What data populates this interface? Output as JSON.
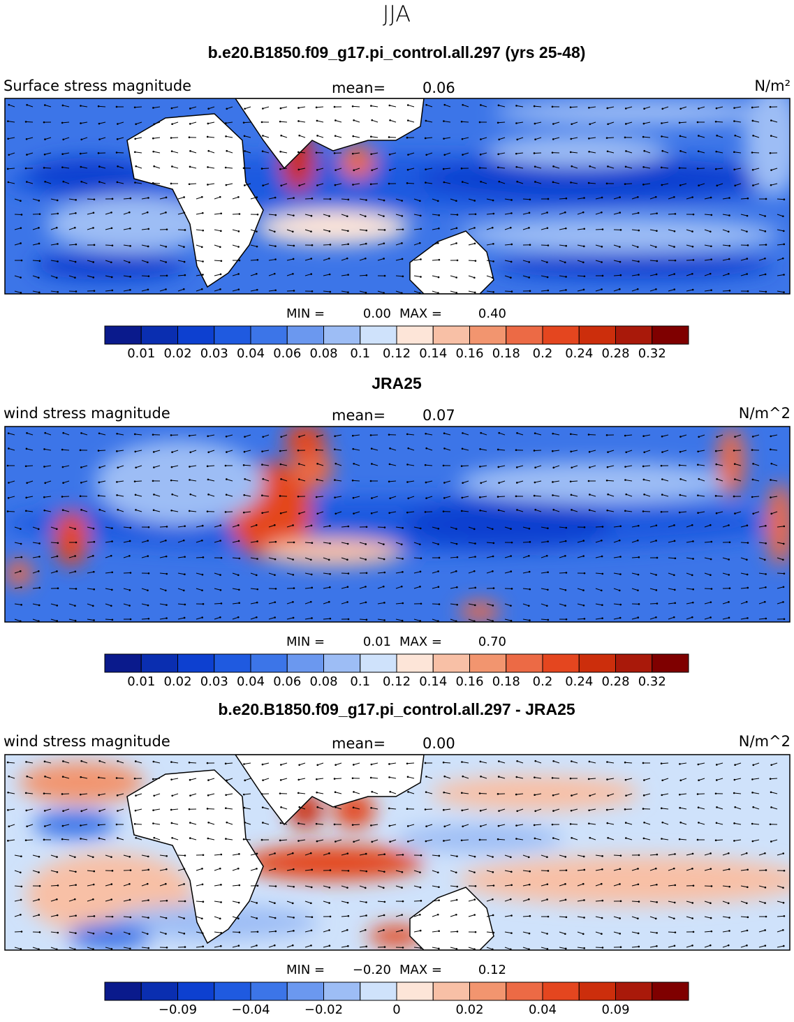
{
  "title": "JJA",
  "panels": [
    {
      "title": "b.e20.B1850.f09_g17.pi_control.all.297 (yrs 25-48)",
      "left_label": "Surface stress magnitude",
      "mean_label": "mean=",
      "mean": "0.06",
      "units": "N/m²",
      "min_label": "MIN =",
      "min": "0.00",
      "max_label": "MAX =",
      "max": "0.40",
      "colorbar": {
        "colors": [
          "#0a1a8c",
          "#0a2eb0",
          "#0d40d0",
          "#1f5ae0",
          "#3c75e8",
          "#6b98ef",
          "#9dbdf5",
          "#cfe2fb",
          "#fde5d8",
          "#f8c0a6",
          "#f2956f",
          "#ec6a45",
          "#e4461f",
          "#cc2e0c",
          "#a9190a",
          "#7f0000"
        ],
        "labels": [
          "0.01",
          "0.02",
          "0.03",
          "0.04",
          "0.06",
          "0.08",
          "0.1",
          "0.12",
          "0.14",
          "0.16",
          "0.18",
          "0.2",
          "0.24",
          "0.28",
          "0.32"
        ]
      }
    },
    {
      "title": "JRA25",
      "left_label": "wind stress magnitude",
      "mean_label": "mean=",
      "mean": "0.07",
      "units": "N/m^2",
      "min_label": "MIN =",
      "min": "0.01",
      "max_label": "MAX =",
      "max": "0.70",
      "colorbar": {
        "colors": [
          "#0a1a8c",
          "#0a2eb0",
          "#0d40d0",
          "#1f5ae0",
          "#3c75e8",
          "#6b98ef",
          "#9dbdf5",
          "#cfe2fb",
          "#fde5d8",
          "#f8c0a6",
          "#f2956f",
          "#ec6a45",
          "#e4461f",
          "#cc2e0c",
          "#a9190a",
          "#7f0000"
        ],
        "labels": [
          "0.01",
          "0.02",
          "0.03",
          "0.04",
          "0.06",
          "0.08",
          "0.1",
          "0.12",
          "0.14",
          "0.16",
          "0.18",
          "0.2",
          "0.24",
          "0.28",
          "0.32"
        ]
      }
    },
    {
      "title": "b.e20.B1850.f09_g17.pi_control.all.297 - JRA25",
      "left_label": "wind stress magnitude",
      "mean_label": "mean=",
      "mean": "0.00",
      "units": "N/m^2",
      "min_label": "MIN =",
      "min": "−0.20",
      "max_label": "MAX =",
      "max": "0.12",
      "colorbar": {
        "colors": [
          "#0a1a8c",
          "#0a2eb0",
          "#0d40d0",
          "#1f5ae0",
          "#3c75e8",
          "#6b98ef",
          "#9dbdf5",
          "#cfe2fb",
          "#fde5d8",
          "#f8c0a6",
          "#f2956f",
          "#ec6a45",
          "#e4461f",
          "#cc2e0c",
          "#a9190a",
          "#7f0000"
        ],
        "labels": [
          null,
          "−0.09",
          null,
          "−0.04",
          null,
          "−0.02",
          null,
          "0",
          null,
          "0.02",
          null,
          "0.04",
          null,
          "0.09",
          null
        ]
      }
    }
  ]
}
